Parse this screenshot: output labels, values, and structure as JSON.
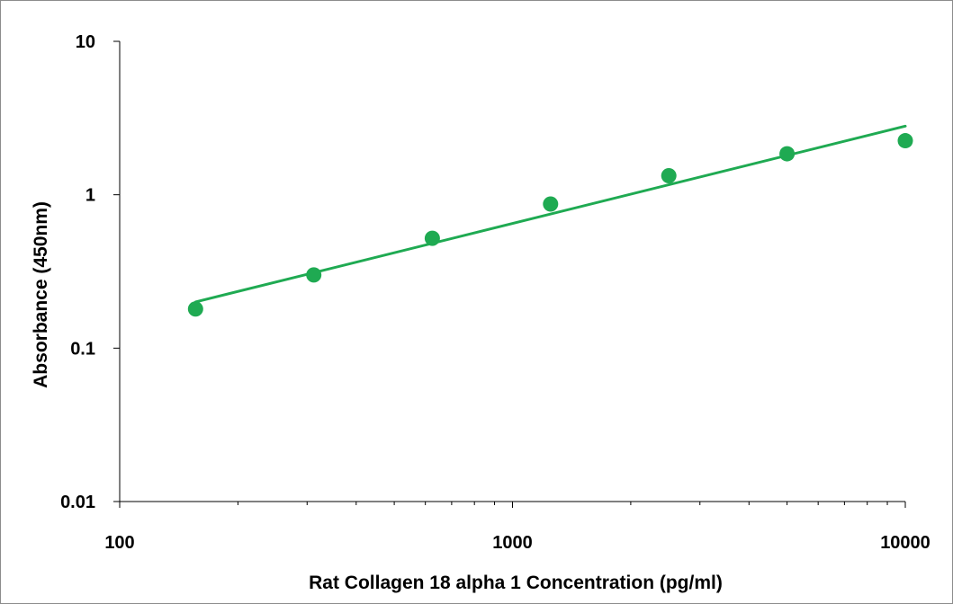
{
  "chart_data": {
    "type": "scatter",
    "title": "",
    "xlabel": "Rat Collagen 18 alpha 1 Concentration (pg/ml)",
    "ylabel": "Absorbance (450nm)",
    "x_scale": "log",
    "y_scale": "log",
    "xlim": [
      100,
      10000
    ],
    "ylim": [
      0.01,
      10
    ],
    "x_tick_labels": [
      "100",
      "1000",
      "10000"
    ],
    "y_tick_labels": [
      "10",
      "1",
      "0.1",
      "0.01"
    ],
    "grid": false,
    "legend": "none",
    "series": [
      {
        "x": [
          156,
          312,
          625,
          1250,
          2500,
          5000,
          10000
        ],
        "y": [
          0.18,
          0.3,
          0.52,
          0.87,
          1.33,
          1.85,
          2.25
        ],
        "marker": "circle"
      }
    ],
    "trendline": {
      "type": "power",
      "x": [
        156,
        10000
      ],
      "y": [
        0.2,
        2.8
      ]
    },
    "colors": {
      "series": "#1faa52",
      "axis": "#000000"
    }
  }
}
